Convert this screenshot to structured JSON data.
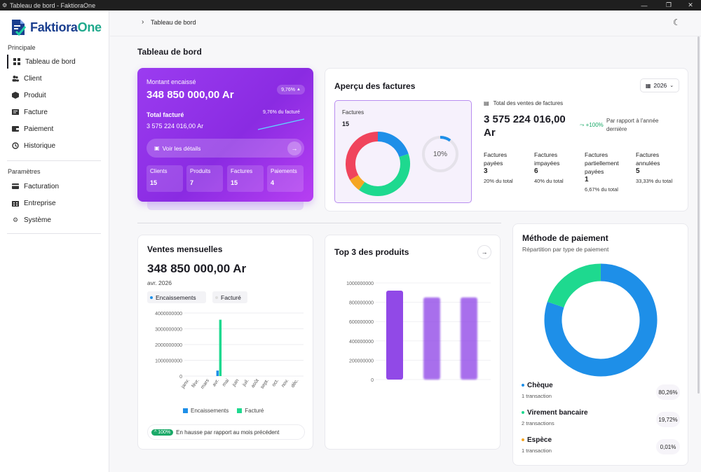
{
  "window": {
    "title": "Tableau de bord - FaktioraOne"
  },
  "sidebar": {
    "logo_main": "Faktiora",
    "logo_accent": "One",
    "section_principal": "Principale",
    "section_params": "Paramètres",
    "items": [
      {
        "label": "Tableau de bord",
        "icon": "grid-icon"
      },
      {
        "label": "Client",
        "icon": "users-icon"
      },
      {
        "label": "Produit",
        "icon": "box-icon"
      },
      {
        "label": "Facture",
        "icon": "invoice-icon"
      },
      {
        "label": "Paiement",
        "icon": "wallet-icon"
      },
      {
        "label": "Historique",
        "icon": "history-icon"
      }
    ],
    "settings": [
      {
        "label": "Facturation",
        "icon": "billing-icon"
      },
      {
        "label": "Entreprise",
        "icon": "building-icon"
      },
      {
        "label": "Système",
        "icon": "gear-icon"
      }
    ]
  },
  "breadcrumb": {
    "current": "Tableau de bord"
  },
  "page": {
    "title": "Tableau de bord"
  },
  "summary": {
    "collected_label": "Montant encaissé",
    "collected_value": "348 850 000,00 Ar",
    "badge": "9,76%",
    "billed_label": "Total facturé",
    "billed_value": "3 575 224 016,00 Ar",
    "billed_pct": "9,76% du facturé",
    "details_button": "Voir les détails",
    "stats": [
      {
        "label": "Clients",
        "value": "15"
      },
      {
        "label": "Produits",
        "value": "7"
      },
      {
        "label": "Factures",
        "value": "15"
      },
      {
        "label": "Paiements",
        "value": "4"
      }
    ]
  },
  "overview": {
    "title": "Aperçu des factures",
    "year": "2026",
    "donut_label": "Factures",
    "donut_count": "15",
    "ring_pct": "10%",
    "ring_fraction": 0.1,
    "total_label": "Total des ventes de factures",
    "total_value_1": "3 575 224 016,00",
    "total_value_2": "Ar",
    "growth": "+100%",
    "growth_note_1": "Par rapport à l'année",
    "growth_note_2": "dernière",
    "donut_segments": [
      {
        "fraction": 0.2,
        "color": "#1e8fe8"
      },
      {
        "fraction": 0.4,
        "color": "#1ed98f"
      },
      {
        "fraction": 0.0667,
        "color": "#f5a623"
      },
      {
        "fraction": 0.3333,
        "color": "#f0445c"
      }
    ],
    "stats": [
      {
        "l1": "Factures",
        "l2": "payées",
        "l3": "",
        "value": "3",
        "pct": "20% du total"
      },
      {
        "l1": "Factures",
        "l2": "impayées",
        "l3": "",
        "value": "6",
        "pct": "40% du total"
      },
      {
        "l1": "Factures",
        "l2": "partiellement",
        "l3": "payées",
        "value": "1",
        "pct": "6,67% du total"
      },
      {
        "l1": "Factures",
        "l2": "annulées",
        "l3": "",
        "value": "5",
        "pct": "33,33% du total"
      }
    ]
  },
  "monthly": {
    "title": "Ventes mensuelles",
    "value": "348 850 000,00 Ar",
    "period": "avr. 2026",
    "toggle_1": "Encaissements",
    "toggle_2": "Facturé",
    "legend_1": "Encaissements",
    "legend_2": "Facturé",
    "trend_badge": "100%",
    "trend_text": "En hausse par rapport au mois précédent",
    "chart_data": {
      "type": "bar",
      "categories": [
        "janv.",
        "févr.",
        "mars",
        "avr.",
        "mai",
        "juin",
        "juil.",
        "août",
        "sept.",
        "oct.",
        "nov.",
        "déc."
      ],
      "series": [
        {
          "name": "Encaissements",
          "color": "#1e8fe8",
          "values": [
            0,
            0,
            0,
            348850000,
            0,
            0,
            0,
            0,
            0,
            0,
            0,
            0
          ]
        },
        {
          "name": "Facturé",
          "color": "#1ed98f",
          "values": [
            0,
            0,
            0,
            3575224016,
            0,
            0,
            0,
            0,
            0,
            0,
            0,
            0
          ]
        }
      ],
      "yticks": [
        "0",
        "1000000000",
        "2000000000",
        "3000000000",
        "4000000000"
      ],
      "ylim": [
        0,
        4000000000
      ]
    }
  },
  "top3": {
    "title": "Top 3 des produits",
    "chart_data": {
      "type": "bar",
      "yticks": [
        "0",
        "200000000",
        "400000000",
        "600000000",
        "800000000",
        "1000000000"
      ],
      "ylim": [
        0,
        1000000000
      ],
      "values": [
        920000000,
        850000000,
        850000000
      ],
      "color": "#8b3fe6"
    }
  },
  "payment": {
    "title": "Méthode de paiement",
    "subtitle": "Répartition par type de paiement",
    "chart_data": {
      "type": "pie",
      "slices": [
        {
          "name": "Chèque",
          "value": 80.26,
          "color": "#1e8fe8"
        },
        {
          "name": "Virement bancaire",
          "value": 19.72,
          "color": "#1ed98f"
        },
        {
          "name": "Espèce",
          "value": 0.01,
          "color": "#f5a623"
        }
      ]
    },
    "items": [
      {
        "name": "Chèque",
        "sub": "1 transaction",
        "pct": "80,26%",
        "color": "#1e8fe8"
      },
      {
        "name": "Virement bancaire",
        "sub": "2 transactions",
        "pct": "19,72%",
        "color": "#1ed98f"
      },
      {
        "name": "Espèce",
        "sub": "1 transaction",
        "pct": "0,01%",
        "color": "#f5a623"
      }
    ]
  }
}
